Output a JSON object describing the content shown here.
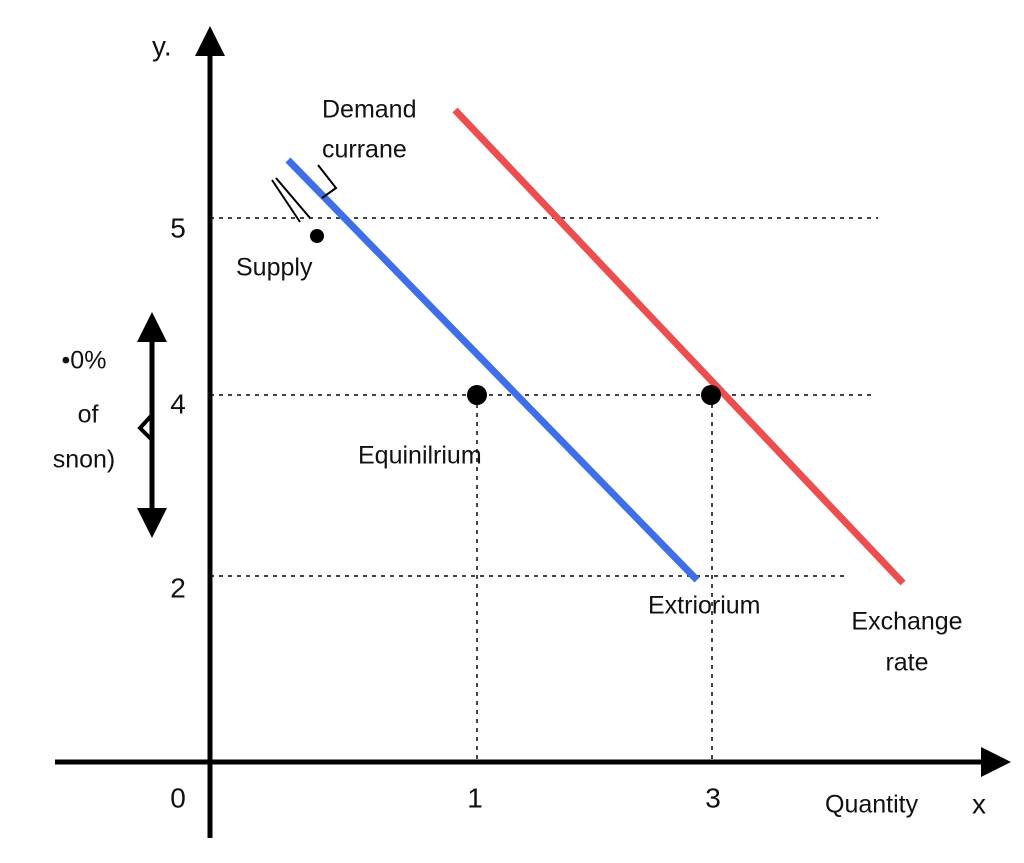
{
  "axes": {
    "y_label": "y.",
    "x_label": "x",
    "x_title": "Quantity",
    "y_ticks": [
      "5",
      "4",
      "2"
    ],
    "x_ticks": [
      "0",
      "1",
      "3"
    ]
  },
  "labels": {
    "demand": [
      "Demand",
      "currane"
    ],
    "supply": "Supply",
    "equilibrium": "Equinilrium",
    "extrorium": "Extriorium",
    "exchange": [
      "Exchange",
      "rate"
    ],
    "side_note": [
      "•0%",
      "of",
      "snon)"
    ]
  }
}
